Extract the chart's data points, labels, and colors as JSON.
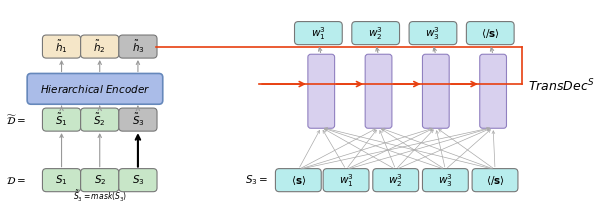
{
  "fig_width": 6.06,
  "fig_height": 2.06,
  "dpi": 100,
  "bg_color": "#ffffff",
  "colors": {
    "light_yellow": "#F5E6C8",
    "light_gray_box": "#BEBEBE",
    "light_green": "#C8E6C8",
    "light_blue_encoder": "#AABCE8",
    "light_cyan": "#B8EDED",
    "light_purple": "#D8D0EE",
    "orange_arrow": "#E84010",
    "gray_arrow": "#999999",
    "black": "#000000"
  }
}
